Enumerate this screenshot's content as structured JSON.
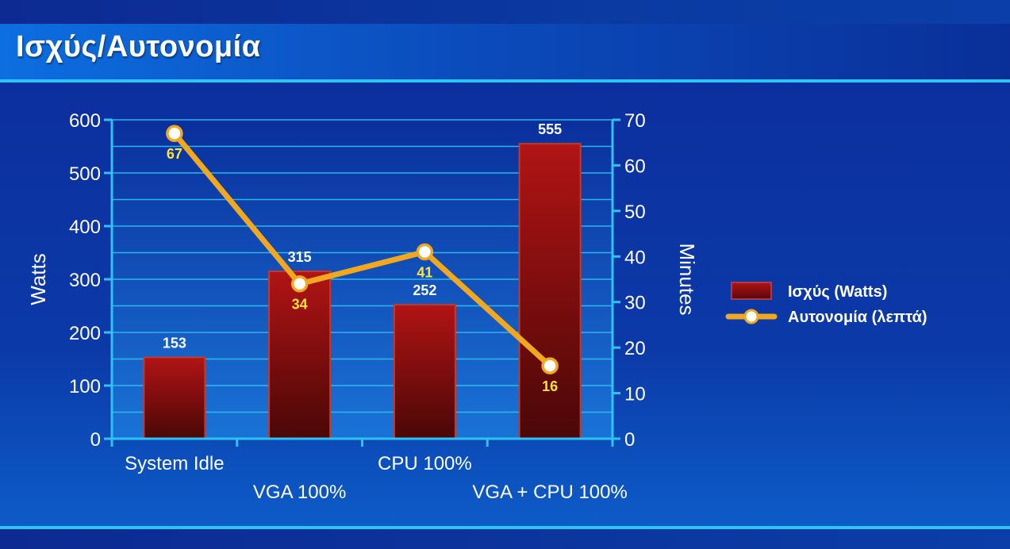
{
  "title": "Ισχύς/Αυτονομία",
  "colors": {
    "bar": "#8c0b0b",
    "line": "#f2a81e",
    "point_fill": "#ffffff",
    "line_label": "#ffe23a",
    "axis": "#2fc3f2",
    "grid": "#2fc3f2",
    "plot_bg_dark": "#0a2f9c",
    "plot_bg_light": "#1a73d6"
  },
  "chart_data": {
    "type": "bar",
    "categories": [
      "System Idle",
      "VGA 100%",
      "CPU 100%",
      "VGA + CPU 100%"
    ],
    "series": [
      {
        "name": "Ισχύς (Watts)",
        "type": "bar",
        "axis": "left",
        "values": [
          153,
          315,
          252,
          555
        ],
        "labels": [
          "153",
          "315",
          "252",
          "555"
        ]
      },
      {
        "name": "Αυτονομία (λεπτά)",
        "type": "line",
        "axis": "right",
        "values": [
          67,
          34,
          41,
          16
        ],
        "labels": [
          "67",
          "34",
          "41",
          "16"
        ]
      }
    ],
    "ylabel": "Watts",
    "y2label": "Minutes",
    "ylim": [
      0,
      600
    ],
    "y2lim": [
      0,
      70
    ],
    "yticks": [
      "0",
      "100",
      "200",
      "300",
      "400",
      "500",
      "600"
    ],
    "y2ticks": [
      "0",
      "10",
      "20",
      "30",
      "40",
      "50",
      "60",
      "70"
    ],
    "grid": true,
    "legend": "right"
  }
}
